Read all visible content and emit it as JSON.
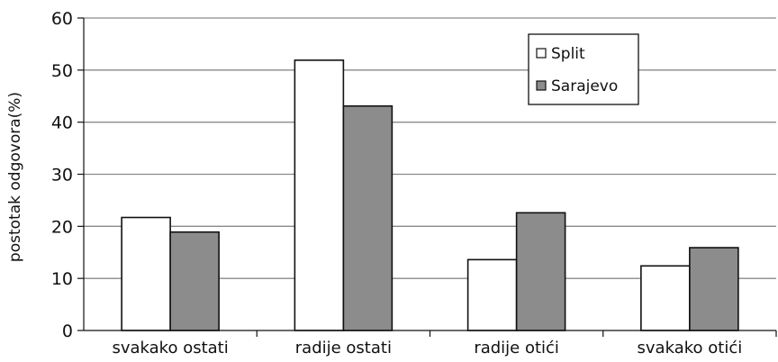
{
  "chart_data": {
    "type": "bar",
    "title": "",
    "xlabel": "",
    "ylabel": "postotak odgovora(%)",
    "ylim": [
      0,
      60
    ],
    "yticks": [
      0,
      10,
      20,
      30,
      40,
      50,
      60
    ],
    "grid": true,
    "legend_position": "top-right",
    "categories": [
      "svakako ostati",
      "radije ostati",
      "radije otići",
      "svakako otići"
    ],
    "series": [
      {
        "name": "Split",
        "color": "#ffffff",
        "values": [
          21.7,
          51.9,
          13.6,
          12.4
        ]
      },
      {
        "name": "Sarajevo",
        "color": "#8c8c8c",
        "values": [
          18.9,
          43.1,
          22.6,
          15.9
        ]
      }
    ]
  }
}
